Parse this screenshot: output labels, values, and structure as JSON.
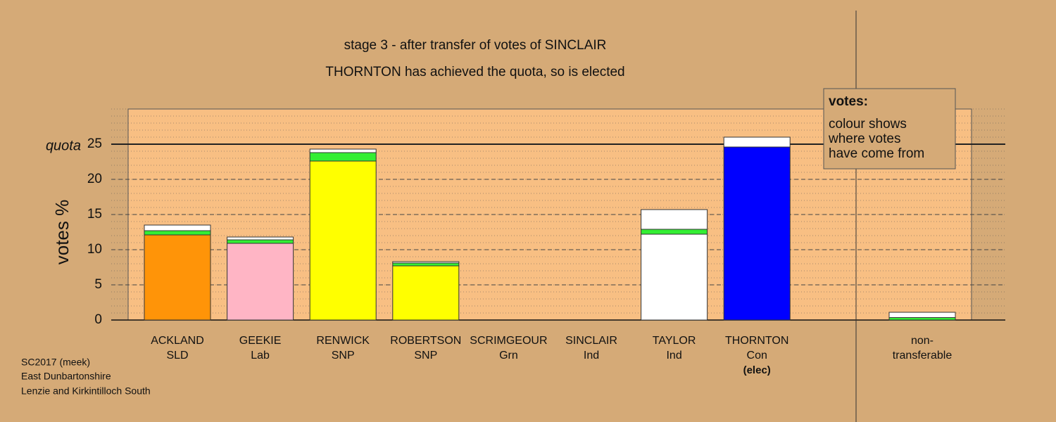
{
  "chart_data": {
    "type": "bar",
    "stacked": true,
    "title": "stage 3 - after transfer of votes of SINCLAIR",
    "subtitle": "THORNTON has achieved the quota, so is elected",
    "ylabel": "votes %",
    "categories": [
      "ACKLAND",
      "GEEKIE",
      "RENWICK",
      "ROBERTSON",
      "SCRIMGEOUR",
      "SINCLAIR",
      "TAYLOR",
      "THORNTON",
      "non-"
    ],
    "sublabels": [
      "SLD",
      "Lab",
      "SNP",
      "SNP",
      "Grn",
      "Ind",
      "Ind",
      "Con",
      "transferable"
    ],
    "notes": [
      null,
      null,
      null,
      null,
      null,
      null,
      null,
      "(elec)",
      null
    ],
    "series": [
      {
        "colors": [
          "#ff9408",
          "#ffb5c5",
          "#ffff00",
          "#ffff00",
          "#33ee33",
          "#ffffff",
          "#ffffff",
          "#0000ff",
          "#ffffff"
        ],
        "values": [
          12.1,
          10.9,
          22.6,
          7.7,
          0,
          0,
          12.2,
          24.6,
          0
        ]
      },
      {
        "color": "#33ee33",
        "values": [
          0.6,
          0.5,
          1.2,
          0.4,
          0,
          0,
          0.7,
          0,
          0.35
        ]
      },
      {
        "color": "#ffffff",
        "values": [
          0.8,
          0.4,
          0.5,
          0.2,
          0,
          0,
          2.8,
          1.4,
          0.75
        ]
      }
    ],
    "ylim": [
      0,
      30
    ],
    "yticks": [
      0,
      5,
      10,
      15,
      20,
      25
    ],
    "grid": true,
    "quota": {
      "value": 25,
      "label": "quota"
    },
    "legend_box": {
      "title": "votes:",
      "lines": [
        "colour shows",
        "where votes",
        "have come from"
      ]
    },
    "footer": [
      "SC2017 (meek)",
      "East Dunbartonshire",
      "Lenzie and Kirkintilloch South"
    ]
  }
}
